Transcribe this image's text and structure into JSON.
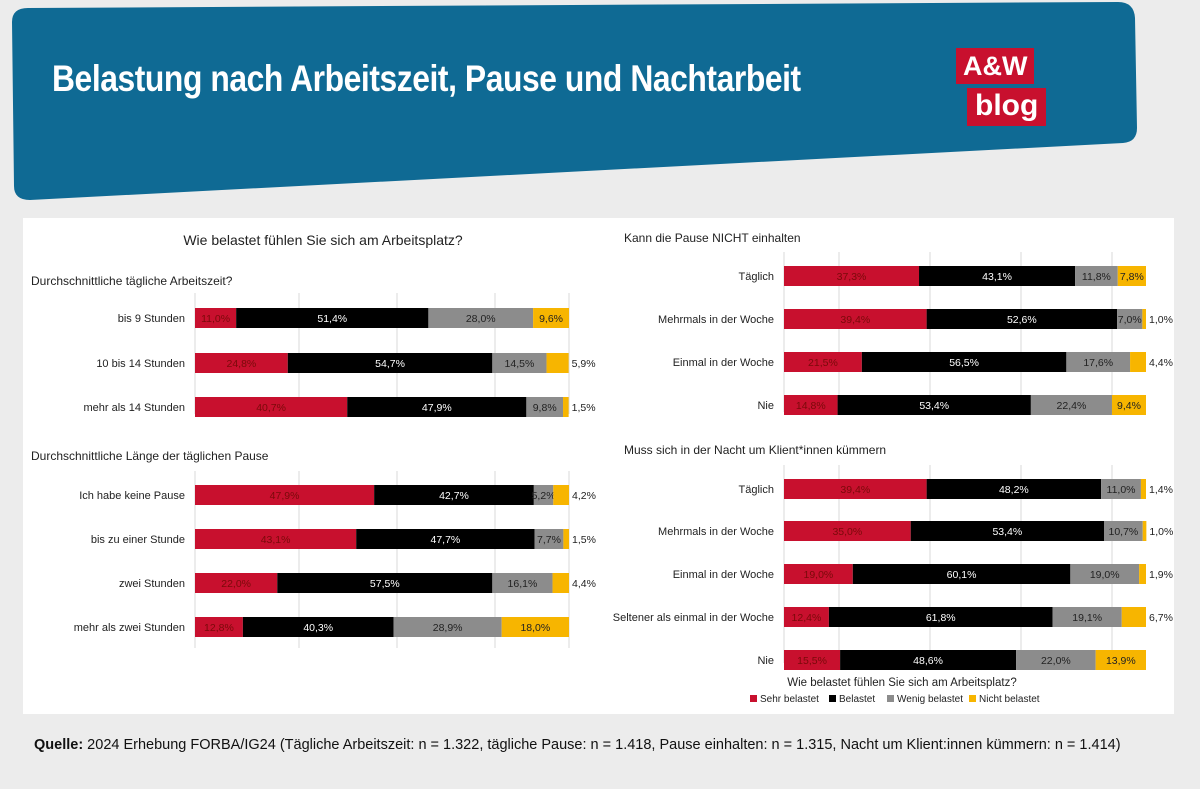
{
  "header": {
    "title": "Belastung nach Arbeitszeit, Pause und Nachtarbeit",
    "logo_line1": "A&W",
    "logo_line2": "blog"
  },
  "colors": {
    "header_bg": "#0f6a94",
    "sehr": "#c8102e",
    "belastet": "#000000",
    "wenig": "#8c8c8c",
    "nicht": "#f7b500"
  },
  "chart_data": [
    {
      "type": "bar",
      "stacked": true,
      "orientation": "horizontal",
      "id": "arbeitszeit",
      "title": "Wie belastet fühlen Sie sich am Arbeitsplatz?",
      "subtitle": "Durchschnittliche tägliche Arbeitszeit?",
      "categories": [
        "bis 9 Stunden",
        "10 bis 14 Stunden",
        "mehr als 14 Stunden"
      ],
      "series": [
        {
          "name": "Sehr belastet",
          "values": [
            11.0,
            24.8,
            40.7
          ]
        },
        {
          "name": "Belastet",
          "values": [
            51.4,
            54.7,
            47.9
          ]
        },
        {
          "name": "Wenig belastet",
          "values": [
            28.0,
            14.5,
            9.8
          ]
        },
        {
          "name": "Nicht belastet",
          "values": [
            9.6,
            5.9,
            1.5
          ]
        }
      ],
      "labels": [
        [
          "11,0%",
          "51,4%",
          "28,0%",
          "9,6%"
        ],
        [
          "24,8%",
          "54,7%",
          "14,5%",
          "5,9%"
        ],
        [
          "40,7%",
          "47,9%",
          "9,8%",
          "1,5%"
        ]
      ],
      "unit": "%"
    },
    {
      "type": "bar",
      "stacked": true,
      "orientation": "horizontal",
      "id": "pause",
      "subtitle": "Durchschnittliche Länge der täglichen Pause",
      "categories": [
        "Ich habe keine Pause",
        "bis zu einer Stunde",
        "zwei Stunden",
        "mehr als zwei Stunden"
      ],
      "series": [
        {
          "name": "Sehr belastet",
          "values": [
            47.9,
            43.1,
            22.0,
            12.8
          ]
        },
        {
          "name": "Belastet",
          "values": [
            42.7,
            47.7,
            57.5,
            40.3
          ]
        },
        {
          "name": "Wenig belastet",
          "values": [
            5.2,
            7.7,
            16.1,
            28.9
          ]
        },
        {
          "name": "Nicht belastet",
          "values": [
            4.2,
            1.5,
            4.4,
            18.0
          ]
        }
      ],
      "labels": [
        [
          "47,9%",
          "42,7%",
          "5,2%",
          "4,2%"
        ],
        [
          "43,1%",
          "47,7%",
          "7,7%",
          "1,5%"
        ],
        [
          "22,0%",
          "57,5%",
          "16,1%",
          "4,4%"
        ],
        [
          "12,8%",
          "40,3%",
          "28,9%",
          "18,0%"
        ]
      ],
      "unit": "%"
    },
    {
      "type": "bar",
      "stacked": true,
      "orientation": "horizontal",
      "id": "pause_nicht",
      "subtitle": "Kann die Pause NICHT einhalten",
      "categories": [
        "Täglich",
        "Mehrmals in der Woche",
        "Einmal in der Woche",
        "Nie"
      ],
      "series": [
        {
          "name": "Sehr belastet",
          "values": [
            37.3,
            39.4,
            21.5,
            14.8
          ]
        },
        {
          "name": "Belastet",
          "values": [
            43.1,
            52.6,
            56.5,
            53.4
          ]
        },
        {
          "name": "Wenig belastet",
          "values": [
            11.8,
            7.0,
            17.6,
            22.4
          ]
        },
        {
          "name": "Nicht belastet",
          "values": [
            7.8,
            1.0,
            4.4,
            9.4
          ]
        }
      ],
      "labels": [
        [
          "37,3%",
          "43,1%",
          "11,8%",
          "7,8%"
        ],
        [
          "39,4%",
          "52,6%",
          "7,0%",
          "1,0%"
        ],
        [
          "21,5%",
          "56,5%",
          "17,6%",
          "4,4%"
        ],
        [
          "14,8%",
          "53,4%",
          "22,4%",
          "9,4%"
        ]
      ],
      "unit": "%"
    },
    {
      "type": "bar",
      "stacked": true,
      "orientation": "horizontal",
      "id": "nacht",
      "subtitle": "Muss sich in der Nacht um Klient*innen kümmern",
      "categories": [
        "Täglich",
        "Mehrmals in der Woche",
        "Einmal in der Woche",
        "Seltener als einmal in der Woche",
        "Nie"
      ],
      "series": [
        {
          "name": "Sehr belastet",
          "values": [
            39.4,
            35.0,
            19.0,
            12.4,
            15.5
          ]
        },
        {
          "name": "Belastet",
          "values": [
            48.2,
            53.4,
            60.1,
            61.8,
            48.6
          ]
        },
        {
          "name": "Wenig belastet",
          "values": [
            11.0,
            10.7,
            19.0,
            19.1,
            22.0
          ]
        },
        {
          "name": "Nicht belastet",
          "values": [
            1.4,
            1.0,
            1.9,
            6.7,
            13.9
          ]
        }
      ],
      "labels": [
        [
          "39,4%",
          "48,2%",
          "11,0%",
          "1,4%"
        ],
        [
          "35,0%",
          "53,4%",
          "10,7%",
          "1,0%"
        ],
        [
          "19,0%",
          "60,1%",
          "19,0%",
          "1,9%"
        ],
        [
          "12,4%",
          "61,8%",
          "19,1%",
          "6,7%"
        ],
        [
          "15,5%",
          "48,6%",
          "22,0%",
          "13,9%"
        ]
      ],
      "unit": "%",
      "legend_title": "Wie belastet fühlen Sie sich am Arbeitsplatz?",
      "legend": [
        "Sehr belastet",
        "Belastet",
        "Wenig belastet",
        "Nicht belastet"
      ]
    }
  ],
  "source": {
    "label": "Quelle:",
    "text": " 2024 Erhebung FORBA/IG24 (Tägliche Arbeitszeit: n = 1.322, tägliche Pause: n = 1.418, Pause einhalten: n = 1.315, Nacht um Klient:innen kümmern: n = 1.414)"
  }
}
